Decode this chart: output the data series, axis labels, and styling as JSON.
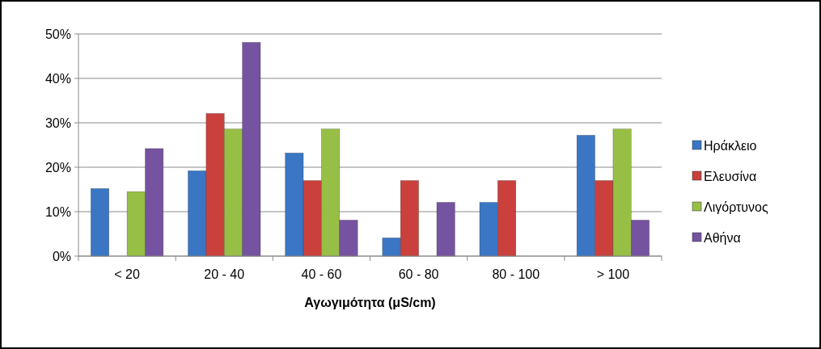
{
  "chart_data": {
    "type": "bar",
    "xlabel": "Αγωγιμότητα (μS/cm)",
    "categories": [
      "< 20",
      "20 - 40",
      "40 - 60",
      "60 - 80",
      "80 - 100",
      "> 100"
    ],
    "series": [
      {
        "name": "Ηράκλειο",
        "color": "#3a76c4",
        "values": [
          15.2,
          19.2,
          23.2,
          4.1,
          12.1,
          27.2
        ]
      },
      {
        "name": "Ελευσίνα",
        "color": "#c9403d",
        "values": [
          0,
          32.1,
          17,
          17,
          17,
          17
        ]
      },
      {
        "name": "Λιγόρτυνος",
        "color": "#97bf45",
        "values": [
          14.5,
          28.6,
          28.6,
          0,
          0,
          28.6
        ]
      },
      {
        "name": "Αθήνα",
        "color": "#7653a0",
        "values": [
          24.2,
          48.1,
          8.1,
          12.1,
          0,
          8.1
        ]
      }
    ],
    "ylim": [
      0,
      50
    ],
    "yticks": [
      {
        "value": 0,
        "label": "0%"
      },
      {
        "value": 10,
        "label": "10%"
      },
      {
        "value": 20,
        "label": "20%"
      },
      {
        "value": 30,
        "label": "30%"
      },
      {
        "value": 40,
        "label": "40%"
      },
      {
        "value": 50,
        "label": "50%"
      }
    ],
    "grid": "y",
    "legend": "right"
  }
}
